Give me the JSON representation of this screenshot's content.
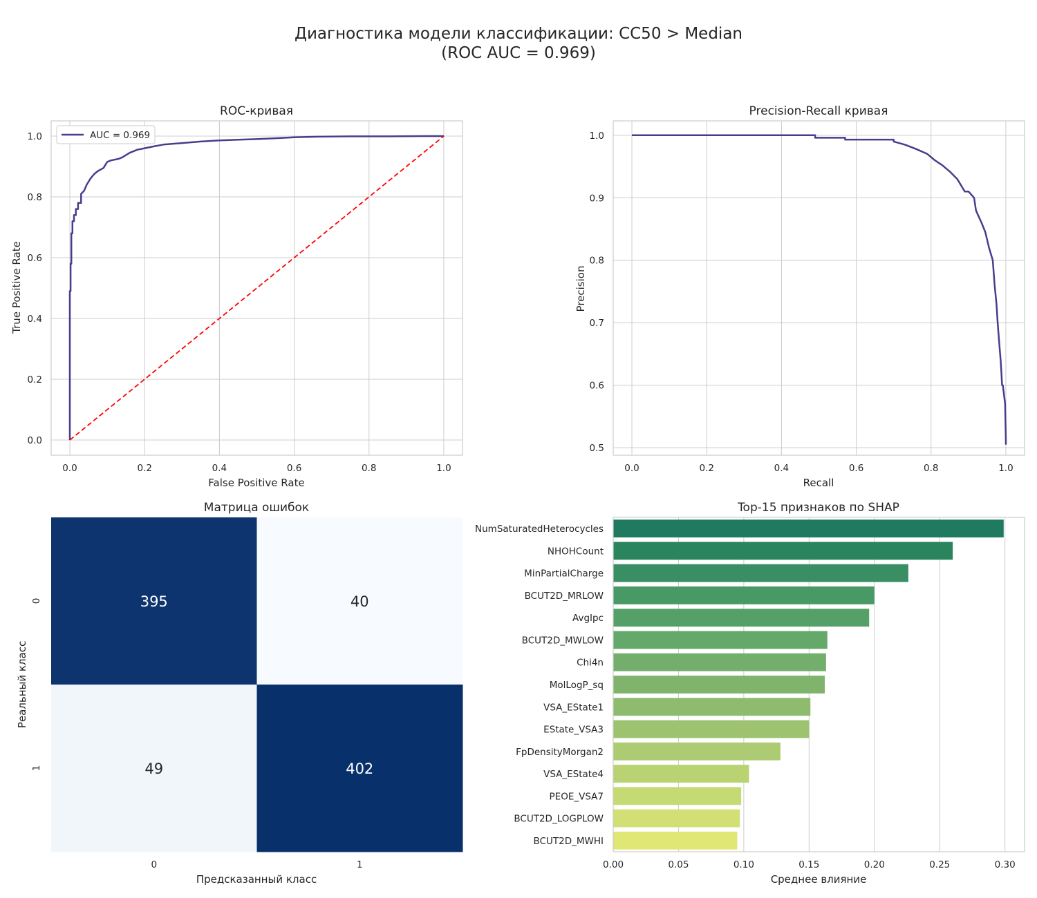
{
  "figure": {
    "title_line1": "Диагностика модели классификации: CC50 > Median",
    "title_line2": "(ROC AUC = 0.969)"
  },
  "chart_data": [
    {
      "type": "line",
      "title": "ROC-кривая",
      "xlabel": "False Positive Rate",
      "ylabel": "True Positive Rate",
      "xlim": [
        -0.05,
        1.05
      ],
      "ylim": [
        -0.05,
        1.05
      ],
      "xticks": [
        0.0,
        0.2,
        0.4,
        0.6,
        0.8,
        1.0
      ],
      "yticks": [
        0.0,
        0.2,
        0.4,
        0.6,
        0.8,
        1.0
      ],
      "tick_labels": [
        "0.0",
        "0.2",
        "0.4",
        "0.6",
        "0.8",
        "1.0"
      ],
      "grid": true,
      "legend": {
        "position": "upper-left",
        "entry": "AUC = 0.969"
      },
      "series": [
        {
          "name": "AUC = 0.969",
          "color": "#483d8b",
          "style": "solid",
          "x": [
            0.0,
            0.0,
            0.002,
            0.002,
            0.004,
            0.004,
            0.007,
            0.007,
            0.011,
            0.011,
            0.016,
            0.016,
            0.022,
            0.022,
            0.03,
            0.03,
            0.038,
            0.045,
            0.055,
            0.065,
            0.075,
            0.09,
            0.1,
            0.11,
            0.13,
            0.14,
            0.16,
            0.18,
            0.2,
            0.22,
            0.25,
            0.3,
            0.35,
            0.4,
            0.45,
            0.5,
            0.55,
            0.6,
            0.66,
            0.75,
            0.85,
            0.95,
            1.0
          ],
          "y": [
            0.0,
            0.49,
            0.49,
            0.58,
            0.58,
            0.68,
            0.68,
            0.72,
            0.72,
            0.74,
            0.74,
            0.76,
            0.76,
            0.78,
            0.78,
            0.81,
            0.82,
            0.84,
            0.86,
            0.875,
            0.885,
            0.895,
            0.915,
            0.92,
            0.925,
            0.93,
            0.945,
            0.955,
            0.96,
            0.965,
            0.972,
            0.977,
            0.982,
            0.986,
            0.988,
            0.99,
            0.993,
            0.996,
            0.998,
            0.999,
            0.999,
            1.0,
            1.0
          ]
        },
        {
          "name": "",
          "color": "#ff0000",
          "style": "dashed",
          "x": [
            0.0,
            1.0
          ],
          "y": [
            0.0,
            1.0
          ]
        }
      ]
    },
    {
      "type": "line",
      "title": "Precision-Recall кривая",
      "xlabel": "Recall",
      "ylabel": "Precision",
      "xlim": [
        -0.05,
        1.05
      ],
      "ylim": [
        0.488,
        1.023
      ],
      "xticks": [
        0.0,
        0.2,
        0.4,
        0.6,
        0.8,
        1.0
      ],
      "xtick_labels": [
        "0.0",
        "0.2",
        "0.4",
        "0.6",
        "0.8",
        "1.0"
      ],
      "yticks": [
        0.5,
        0.6,
        0.7,
        0.8,
        0.9,
        1.0
      ],
      "ytick_labels": [
        "0.5",
        "0.6",
        "0.7",
        "0.8",
        "0.9",
        "1.0"
      ],
      "grid": true,
      "series": [
        {
          "name": "",
          "color": "#483d8b",
          "style": "solid",
          "x": [
            0.0,
            0.49,
            0.49,
            0.57,
            0.57,
            0.7,
            0.7,
            0.73,
            0.76,
            0.79,
            0.81,
            0.83,
            0.85,
            0.87,
            0.89,
            0.9,
            0.915,
            0.92,
            0.925,
            0.935,
            0.945,
            0.955,
            0.965,
            0.97,
            0.975,
            0.978,
            0.982,
            0.986,
            0.988,
            0.99,
            0.992,
            0.994,
            0.996,
            0.998,
            1.0,
            1.0
          ],
          "y": [
            1.0,
            1.0,
            0.996,
            0.996,
            0.993,
            0.993,
            0.99,
            0.985,
            0.978,
            0.97,
            0.96,
            0.952,
            0.942,
            0.93,
            0.91,
            0.91,
            0.9,
            0.88,
            0.873,
            0.86,
            0.845,
            0.82,
            0.8,
            0.76,
            0.73,
            0.7,
            0.67,
            0.64,
            0.62,
            0.6,
            0.6,
            0.59,
            0.58,
            0.57,
            0.51,
            0.505
          ]
        }
      ]
    },
    {
      "type": "heatmap",
      "title": "Матрица ошибок",
      "xlabel": "Предсказанный класс",
      "ylabel": "Реальный класс",
      "x_categories": [
        "0",
        "1"
      ],
      "y_categories": [
        "0",
        "1"
      ],
      "values": [
        [
          395,
          40
        ],
        [
          49,
          402
        ]
      ],
      "colormap": [
        "#f7fbff",
        "#08306b"
      ],
      "text_colors": {
        "dark": "#ffffff",
        "light": "#262626"
      }
    },
    {
      "type": "bar",
      "orientation": "horizontal",
      "title": "Top-15 признаков по SHAP",
      "xlabel": "Среднее влияние",
      "ylabel": "",
      "xlim": [
        0,
        0.315
      ],
      "xticks": [
        0.0,
        0.05,
        0.1,
        0.15,
        0.2,
        0.25,
        0.3
      ],
      "xtick_labels": [
        "0.00",
        "0.05",
        "0.10",
        "0.15",
        "0.20",
        "0.25",
        "0.30"
      ],
      "grid": true,
      "categories": [
        "NumSaturatedHeterocycles",
        "NHOHCount",
        "MinPartialCharge",
        "BCUT2D_MRLOW",
        "AvgIpc",
        "BCUT2D_MWLOW",
        "Chi4n",
        "MolLogP_sq",
        "VSA_EState1",
        "EState_VSA3",
        "FpDensityMorgan2",
        "VSA_EState4",
        "PEOE_VSA7",
        "BCUT2D_LOGPLOW",
        "BCUT2D_MWHI"
      ],
      "values": [
        0.299,
        0.26,
        0.226,
        0.2,
        0.196,
        0.164,
        0.163,
        0.162,
        0.151,
        0.15,
        0.128,
        0.104,
        0.098,
        0.097,
        0.095
      ],
      "colors": [
        "#1f7a5f",
        "#2a855f",
        "#3a8e63",
        "#489965",
        "#55a067",
        "#65a96a",
        "#74ae6c",
        "#80b46d",
        "#8ebb6e",
        "#9dc370",
        "#adcb72",
        "#bad372",
        "#c6da73",
        "#d2df74",
        "#e0e774"
      ]
    }
  ]
}
